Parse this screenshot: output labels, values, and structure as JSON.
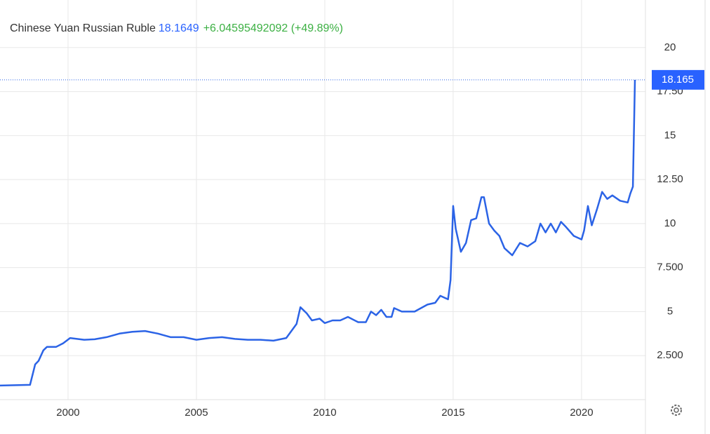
{
  "chart_data": {
    "type": "line",
    "header": {
      "title": "Chinese Yuan Russian Ruble",
      "price": "18.1649",
      "change": "+6.04595492092",
      "change_percent": "(+49.89%)"
    },
    "x": [
      1997.35,
      1998.52,
      1998.72,
      1998.85,
      1999.04,
      1999.18,
      1999.32,
      1999.54,
      1999.81,
      2000.08,
      2000.63,
      2001.04,
      2001.5,
      2002.0,
      2002.5,
      2003.0,
      2003.5,
      2004.0,
      2004.5,
      2005.0,
      2005.5,
      2006.0,
      2006.5,
      2007.0,
      2007.5,
      2008.0,
      2008.5,
      2008.9,
      2009.05,
      2009.3,
      2009.5,
      2009.8,
      2010.0,
      2010.3,
      2010.6,
      2010.9,
      2011.3,
      2011.6,
      2011.8,
      2012.0,
      2012.2,
      2012.4,
      2012.6,
      2012.7,
      2013.0,
      2013.5,
      2014.0,
      2014.3,
      2014.5,
      2014.8,
      2014.9,
      2015.0,
      2015.1,
      2015.3,
      2015.5,
      2015.7,
      2015.9,
      2016.1,
      2016.2,
      2016.4,
      2016.6,
      2016.8,
      2017.0,
      2017.3,
      2017.6,
      2017.9,
      2018.2,
      2018.4,
      2018.6,
      2018.8,
      2019.0,
      2019.2,
      2019.4,
      2019.7,
      2020.0,
      2020.1,
      2020.25,
      2020.4,
      2020.6,
      2020.8,
      2021.0,
      2021.2,
      2021.5,
      2021.8,
      2021.9,
      2022.0,
      2022.08
    ],
    "series": [
      {
        "name": "Chinese Yuan Russian Ruble",
        "color": "#2b63e6",
        "values": [
          0.8,
          0.84,
          2.0,
          2.2,
          2.8,
          3.0,
          3.0,
          3.0,
          3.2,
          3.5,
          3.4,
          3.43,
          3.55,
          3.75,
          3.85,
          3.9,
          3.75,
          3.55,
          3.55,
          3.4,
          3.5,
          3.55,
          3.45,
          3.4,
          3.4,
          3.35,
          3.5,
          4.3,
          5.25,
          4.9,
          4.5,
          4.6,
          4.35,
          4.5,
          4.5,
          4.7,
          4.4,
          4.4,
          5.0,
          4.8,
          5.1,
          4.7,
          4.7,
          5.2,
          5.0,
          5.0,
          5.4,
          5.5,
          5.9,
          5.7,
          6.8,
          11.0,
          9.7,
          8.4,
          8.9,
          10.2,
          10.3,
          11.5,
          11.5,
          10.0,
          9.6,
          9.3,
          8.6,
          8.2,
          8.9,
          8.7,
          9.0,
          10.0,
          9.5,
          10.0,
          9.5,
          10.1,
          9.8,
          9.3,
          9.1,
          9.6,
          11.0,
          9.9,
          10.8,
          11.8,
          11.4,
          11.6,
          11.3,
          11.2,
          11.7,
          12.1,
          18.16
        ]
      }
    ],
    "last_value": 18.165,
    "xlim": [
      1997.35,
      2022.49
    ],
    "xticks": [
      2000,
      2005,
      2010,
      2015,
      2020
    ],
    "ylim": [
      0,
      22.7
    ],
    "yticks": [
      {
        "value": 2.5,
        "label": "2.500"
      },
      5,
      {
        "value": 7.5,
        "label": "7.500"
      },
      10,
      {
        "value": 12.5,
        "label": "12.50"
      },
      15,
      {
        "value": 17.5,
        "label": "17.50"
      },
      20
    ],
    "grid": true
  }
}
